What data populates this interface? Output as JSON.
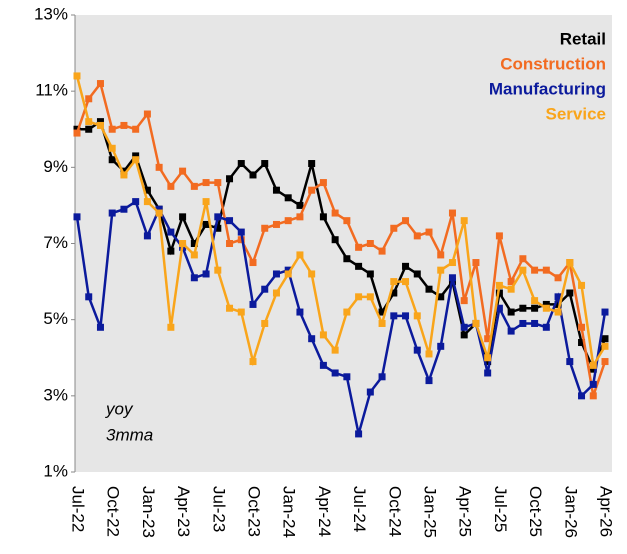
{
  "chart_data": {
    "type": "line",
    "annotations": [
      "yoy",
      "3mma"
    ],
    "categories": [
      "Jul-22",
      null,
      null,
      "Oct-22",
      null,
      null,
      "Jan-23",
      null,
      null,
      "Apr-23",
      null,
      null,
      "Jul-23",
      null,
      null,
      "Oct-23",
      null,
      null,
      "Jan-24",
      null,
      null,
      "Apr-24",
      null,
      null,
      "Jul-24",
      null,
      null,
      "Oct-24",
      null,
      null,
      "Jan-25",
      null,
      null,
      "Apr-25",
      null,
      null,
      "Jul-25",
      null,
      null,
      "Oct-25",
      null,
      null,
      "Jan-26",
      null,
      null,
      "Apr-26"
    ],
    "series": [
      {
        "name": "Retail",
        "color": "#000000",
        "values": [
          10.0,
          10.0,
          10.2,
          9.2,
          8.9,
          9.3,
          8.4,
          7.9,
          6.8,
          7.7,
          7.0,
          7.5,
          7.4,
          8.7,
          9.1,
          8.8,
          9.1,
          8.4,
          8.2,
          8.0,
          9.1,
          7.7,
          7.1,
          6.6,
          6.4,
          6.2,
          5.2,
          5.7,
          6.4,
          6.2,
          5.8,
          5.6,
          6.0,
          4.6,
          4.9,
          3.9,
          5.7,
          5.2,
          5.3,
          5.3,
          5.4,
          5.4,
          5.7,
          4.4,
          3.7,
          4.5
        ]
      },
      {
        "name": "Construction",
        "color": "#f26b21",
        "values": [
          9.9,
          10.8,
          11.2,
          10.0,
          10.1,
          10.0,
          10.4,
          9.0,
          8.5,
          8.9,
          8.5,
          8.6,
          8.6,
          7.0,
          7.1,
          6.5,
          7.4,
          7.5,
          7.6,
          7.7,
          8.4,
          8.6,
          7.8,
          7.6,
          6.9,
          7.0,
          6.8,
          7.4,
          7.6,
          7.2,
          7.3,
          6.7,
          7.8,
          5.5,
          6.5,
          4.5,
          7.2,
          6.0,
          6.6,
          6.3,
          6.3,
          6.1,
          6.5,
          4.8,
          3.0,
          3.9
        ]
      },
      {
        "name": "Manufacturing",
        "color": "#0b1a9c",
        "values": [
          7.7,
          5.6,
          4.8,
          7.8,
          7.9,
          8.1,
          7.2,
          7.9,
          7.3,
          6.9,
          6.1,
          6.2,
          7.7,
          7.6,
          7.3,
          5.4,
          5.8,
          6.2,
          6.3,
          5.2,
          4.5,
          3.8,
          3.6,
          3.5,
          2.0,
          3.1,
          3.5,
          5.1,
          5.1,
          4.2,
          3.4,
          4.3,
          6.1,
          4.8,
          4.9,
          3.6,
          5.3,
          4.7,
          4.9,
          4.9,
          4.8,
          5.6,
          3.9,
          3.0,
          3.3,
          5.2
        ]
      },
      {
        "name": "Service",
        "color": "#f9a51b",
        "values": [
          11.4,
          10.2,
          10.1,
          9.5,
          8.8,
          9.2,
          8.1,
          7.8,
          4.8,
          7.0,
          6.7,
          8.1,
          6.3,
          5.3,
          5.2,
          3.9,
          4.9,
          5.7,
          6.2,
          6.7,
          6.2,
          4.6,
          4.2,
          5.2,
          5.6,
          5.6,
          4.9,
          6.0,
          6.0,
          5.1,
          4.1,
          6.3,
          6.5,
          7.6,
          4.9,
          4.0,
          5.9,
          5.8,
          6.3,
          5.5,
          5.3,
          5.2,
          6.5,
          5.9,
          3.8,
          4.3
        ]
      }
    ],
    "ylim": [
      1,
      13
    ],
    "yticks": [
      {
        "value": 1,
        "label": "1%"
      },
      {
        "value": 3,
        "label": "3%"
      },
      {
        "value": 5,
        "label": "5%"
      },
      {
        "value": 7,
        "label": "7%"
      },
      {
        "value": 9,
        "label": "9%"
      },
      {
        "value": 11,
        "label": "11%"
      },
      {
        "value": 13,
        "label": "13%"
      }
    ],
    "grid": false,
    "legend": "top-right"
  }
}
